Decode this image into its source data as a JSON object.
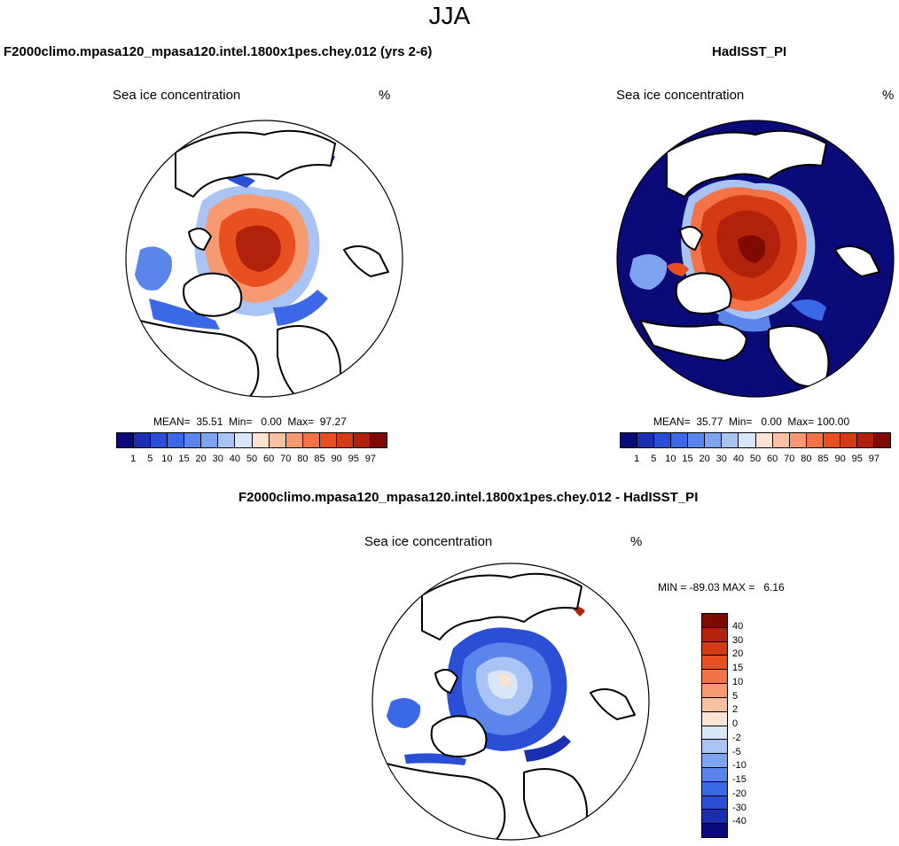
{
  "figure": {
    "season": "JJA"
  },
  "panels": [
    {
      "title": "F2000climo.mpasa120_mpasa120.intel.1800x1pes.chey.012 (yrs 2-6)",
      "variable": "Sea ice concentration",
      "units": "%",
      "stats": "MEAN=  35.51  Min=   0.00  Max=  97.27",
      "mean": 35.51,
      "min": 0.0,
      "max": 97.27
    },
    {
      "title": "HadISST_PI",
      "variable": "Sea ice concentration",
      "units": "%",
      "stats": "MEAN=  35.77  Min=   0.00  Max= 100.00",
      "mean": 35.77,
      "min": 0.0,
      "max": 100.0
    },
    {
      "title": "F2000climo.mpasa120_mpasa120.intel.1800x1pes.chey.012 - HadISST_PI",
      "variable": "Sea ice concentration",
      "units": "%",
      "stats": "MIN = -89.03 MAX =   6.16",
      "min": -89.03,
      "max": 6.16
    }
  ],
  "colorbar_main": {
    "levels": [
      "1",
      "5",
      "10",
      "15",
      "20",
      "30",
      "40",
      "50",
      "60",
      "70",
      "80",
      "85",
      "90",
      "95",
      "97"
    ],
    "colors": [
      "#0a0a78",
      "#1a2fb0",
      "#2a4fd6",
      "#3a68e6",
      "#5a86ec",
      "#7ea3f0",
      "#a9c3f4",
      "#d8e6f8",
      "#fde3d2",
      "#f9c0a1",
      "#f79a72",
      "#f37248",
      "#e8501f",
      "#d43b14",
      "#b2210c",
      "#7f0a02"
    ]
  },
  "colorbar_diff": {
    "levels": [
      "40",
      "30",
      "20",
      "15",
      "10",
      "5",
      "2",
      "0",
      "-2",
      "-5",
      "-10",
      "-15",
      "-20",
      "-30",
      "-40"
    ],
    "colors": [
      "#7f0a02",
      "#b2210c",
      "#d43b14",
      "#e8501f",
      "#f37248",
      "#f79a72",
      "#f9c0a1",
      "#fde3d2",
      "#d8e6f8",
      "#a9c3f4",
      "#7ea3f0",
      "#5a86ec",
      "#3a68e6",
      "#2a4fd6",
      "#1a2fb0",
      "#0a0a78"
    ]
  },
  "chart_data": [
    {
      "type": "heatmap",
      "projection": "north polar stereographic",
      "title": "F2000climo.mpasa120_mpasa120.intel.1800x1pes.chey.012 (yrs 2-6)",
      "variable": "Sea ice concentration",
      "units": "%",
      "mean": 35.51,
      "min": 0.0,
      "max": 97.27,
      "contour_levels": [
        1,
        5,
        10,
        15,
        20,
        30,
        40,
        50,
        60,
        70,
        80,
        85,
        90,
        95,
        97
      ]
    },
    {
      "type": "heatmap",
      "projection": "north polar stereographic",
      "title": "HadISST_PI",
      "variable": "Sea ice concentration",
      "units": "%",
      "mean": 35.77,
      "min": 0.0,
      "max": 100.0,
      "contour_levels": [
        1,
        5,
        10,
        15,
        20,
        30,
        40,
        50,
        60,
        70,
        80,
        85,
        90,
        95,
        97
      ]
    },
    {
      "type": "heatmap",
      "projection": "north polar stereographic",
      "title": "F2000climo.mpasa120_mpasa120.intel.1800x1pes.chey.012 - HadISST_PI",
      "variable": "Sea ice concentration",
      "units": "%",
      "min": -89.03,
      "max": 6.16,
      "contour_levels": [
        -40,
        -30,
        -20,
        -15,
        -10,
        -5,
        -2,
        0,
        2,
        5,
        10,
        15,
        20,
        30,
        40
      ]
    }
  ]
}
